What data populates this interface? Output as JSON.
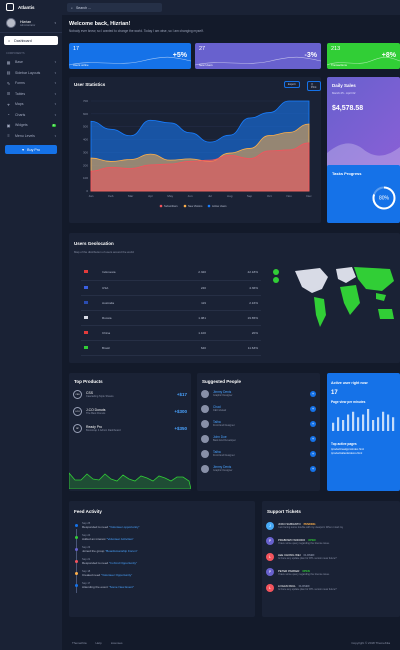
{
  "brand": {
    "name": "Atlantis"
  },
  "user": {
    "name": "Hizrian",
    "role": "Administrator"
  },
  "nav": {
    "active": "Dashboard",
    "section": "COMPONENTS",
    "items": [
      "Base",
      "Sidebar Layouts",
      "Forms",
      "Tables",
      "Maps",
      "Charts",
      "Widgets",
      "Menu Levels"
    ],
    "widgets_badge": "4",
    "buy_pro": "Buy Pro"
  },
  "search": {
    "placeholder": "Search ..."
  },
  "welcome": {
    "title": "Welcome back, Hizrian!",
    "subtitle": "Nobody ever knew, so I wanted to change the world. Today I am wise, so I am changing myself."
  },
  "stats": [
    {
      "value": "17",
      "label": "Users online",
      "change": "+5%",
      "color": "#1572e8"
    },
    {
      "value": "27",
      "label": "New Users",
      "change": "-3%",
      "color": "#6861ce"
    },
    {
      "value": "213",
      "label": "Transactions",
      "change": "+8%",
      "color": "#31ce36"
    }
  ],
  "user_statistics": {
    "title": "User Statistics",
    "export": "Export",
    "print": "Print"
  },
  "chart_data": {
    "type": "area",
    "title": "User Statistics",
    "categories": [
      "Jan",
      "Feb",
      "Mar",
      "Apr",
      "May",
      "Jun",
      "Jul",
      "Aug",
      "Sep",
      "Oct",
      "Nov",
      "Dec"
    ],
    "ylim": [
      0,
      700
    ],
    "yticks": [
      "0",
      "100",
      "200",
      "300",
      "400",
      "500",
      "600",
      "700"
    ],
    "legend": "bottom",
    "series": [
      {
        "name": "Subscribers",
        "color": "#f3545d",
        "values": [
          154,
          184,
          175,
          203,
          210,
          231,
          240,
          278,
          252,
          312,
          320,
          374
        ]
      },
      {
        "name": "New Visitors",
        "color": "#fdaf4b",
        "values": [
          256,
          230,
          245,
          287,
          240,
          250,
          230,
          295,
          331,
          431,
          456,
          521
        ]
      },
      {
        "name": "Active Users",
        "color": "#177dff",
        "values": [
          542,
          480,
          430,
          550,
          530,
          453,
          380,
          434,
          568,
          610,
          700,
          900
        ]
      }
    ]
  },
  "daily_sales": {
    "title": "Daily Sales",
    "date": "March 25 - April 02",
    "amount": "$4,578.58"
  },
  "tasks": {
    "title": "Tasks Progress",
    "percent": "80%",
    "value": 80
  },
  "geo": {
    "title": "Users Geolocation",
    "subtitle": "Map of the distribution of users around the world",
    "rows": [
      {
        "country": "Indonesia",
        "users": "2.320",
        "pct": "42.18%",
        "flag": "#e23b3b"
      },
      {
        "country": "USA",
        "users": "240",
        "pct": "4.36%",
        "flag": "#3b5fe2"
      },
      {
        "country": "Australia",
        "users": "119",
        "pct": "2.16%",
        "flag": "#2a4cb0"
      },
      {
        "country": "Russia",
        "users": "1.081",
        "pct": "19.65%",
        "flag": "#d8dbe6"
      },
      {
        "country": "China",
        "users": "1.100",
        "pmt": "",
        "pct": "20%",
        "flag": "#e23b3b"
      },
      {
        "country": "Brasil",
        "users": "640",
        "pct": "11.63%",
        "flag": "#31ce36"
      }
    ]
  },
  "top_products": {
    "title": "Top Products",
    "items": [
      {
        "name": "CSS",
        "category": "Cascading Style Sheets",
        "price": "+$17",
        "icon": "CSS"
      },
      {
        "name": "J.CO Donuts",
        "category": "The Best Donuts",
        "price": "+$300",
        "icon": "J.CO"
      },
      {
        "name": "Ready Pro",
        "category": "Bootstrap 4 Admin Dashboard",
        "price": "+$350",
        "icon": "RP"
      }
    ]
  },
  "people": {
    "title": "Suggested People",
    "items": [
      {
        "name": "Jimmy Denis",
        "role": "Graphic Designer"
      },
      {
        "name": "Chad",
        "role": "CEO Zeleaf"
      },
      {
        "name": "Talha",
        "role": "Front End Designer"
      },
      {
        "name": "John Doe",
        "role": "Back End Developer"
      },
      {
        "name": "Talha",
        "role": "Front End Designer"
      },
      {
        "name": "Jimmy Denis",
        "role": "Graphic Designer"
      }
    ]
  },
  "active_users": {
    "title": "Active user right now",
    "count": "17",
    "subtitle": "Page view per minutes",
    "pages_title": "Top active pages",
    "pages": [
      "/product/readypro/index.html",
      "/product/atlantis/demo.html"
    ],
    "bars": [
      3,
      5,
      4,
      6,
      7,
      5,
      6,
      8,
      4,
      5,
      7,
      6,
      5
    ]
  },
  "feed": {
    "title": "Feed Activity",
    "items": [
      {
        "date": "Sep 25",
        "text": "Responded to need",
        "link": "\"Volunteer opportunity\"",
        "color": "#1572e8"
      },
      {
        "date": "Sep 24",
        "text": "Added an interest",
        "link": "\"Volunteer Activities\"",
        "color": "#31ce36"
      },
      {
        "date": "Sep 23",
        "text": "Joined the group",
        "link": "\"Boardsmanship Forum\"",
        "color": "#6861ce"
      },
      {
        "date": "Sep 21",
        "text": "Responded to need",
        "link": "\"In-Kind Opportunity\"",
        "color": "#f3545d"
      },
      {
        "date": "Sep 18",
        "text": "Created need",
        "link": "\"Volunteer Opportunity\"",
        "color": "#fdaf4b"
      },
      {
        "date": "Sep 17",
        "text": "Attending the event",
        "link": "\"Some New Event\"",
        "color": "#1572e8"
      }
    ]
  },
  "tickets": {
    "title": "Support Tickets",
    "items": [
      {
        "initial": "J",
        "name": "JOKO SUBIANTO",
        "status": "PENDING",
        "status_color": "#fdaf4b",
        "msg": "I am facing some trouble with my viewport. When i start my",
        "color": "#48abf7"
      },
      {
        "initial": "P",
        "name": "PRABOWO WIDODO",
        "status": "OPEN",
        "status_color": "#31ce36",
        "msg": "I have some query regarding the license issue.",
        "color": "#6861ce"
      },
      {
        "initial": "L",
        "name": "LEE CHONG WEI",
        "status": "CLOSED",
        "status_color": "#8a92a8",
        "msg": "Is there any update plan for RTL version near future?",
        "color": "#f3545d"
      },
      {
        "initial": "P",
        "name": "PETER PARKER",
        "status": "OPEN",
        "status_color": "#31ce36",
        "msg": "I have some query regarding the license issue.",
        "color": "#6861ce"
      },
      {
        "initial": "L",
        "name": "LOGAN PAUL",
        "status": "CLOSED",
        "status_color": "#8a92a8",
        "msg": "Is there any update plan for RTL version near future?",
        "color": "#f3545d"
      }
    ]
  },
  "footer": {
    "links": [
      "ThemeKita",
      "Help",
      "Licenses"
    ],
    "copyright": "Copyright © 2018 ThemeKita"
  }
}
